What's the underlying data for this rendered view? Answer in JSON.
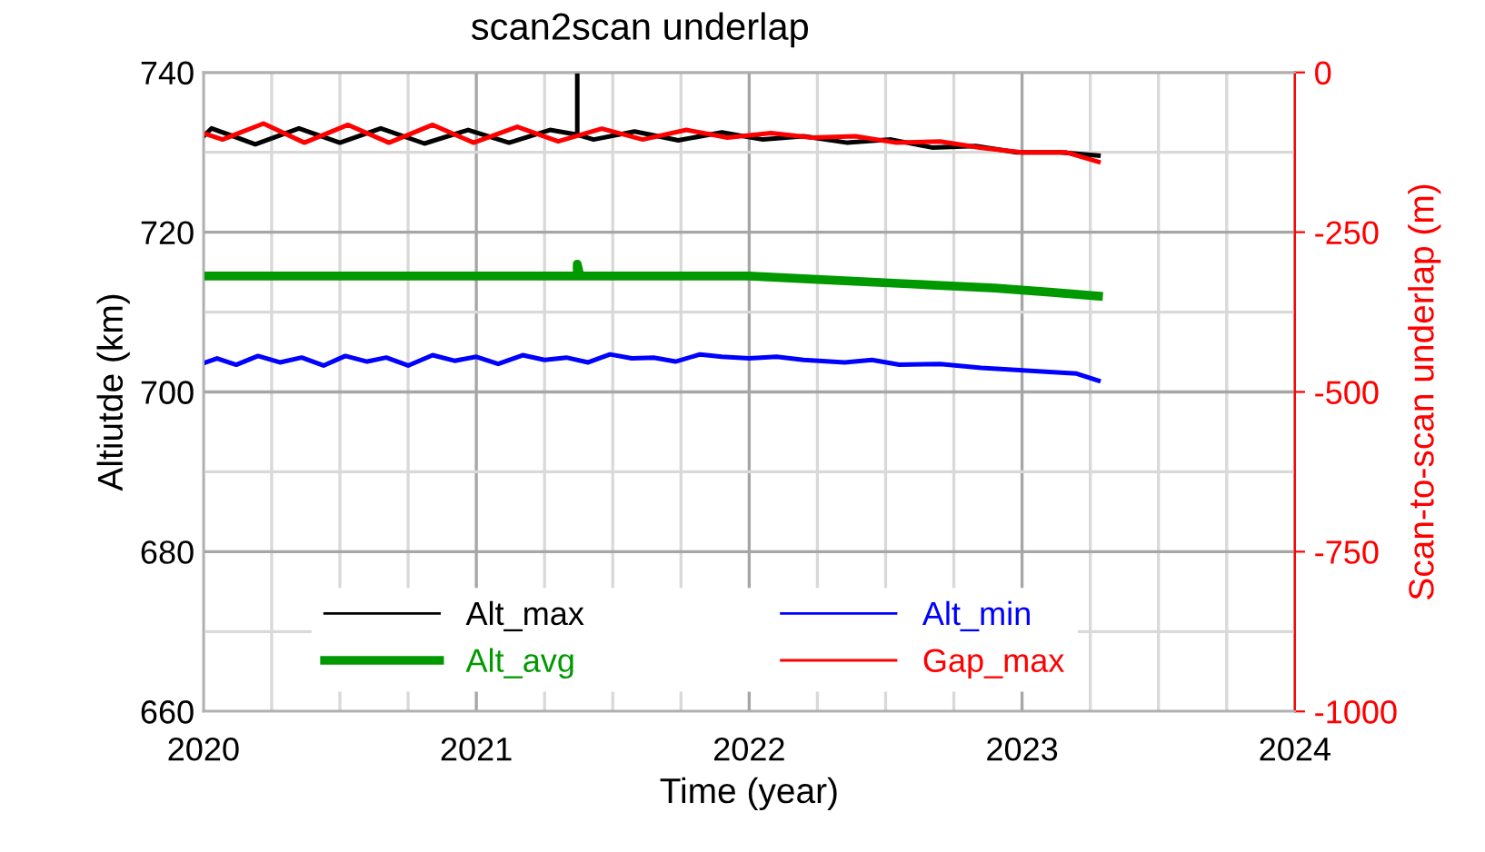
{
  "chart_data": {
    "type": "line",
    "title": "scan2scan underlap",
    "xlabel": "Time (year)",
    "ylabel": "Altiutde (km)",
    "y2label": "Scan-to-scan underlap (m)",
    "xlim": [
      2020,
      2024
    ],
    "xticks": [
      2020,
      2021,
      2022,
      2023,
      2024
    ],
    "ylim": [
      660,
      740
    ],
    "yticks": [
      660,
      680,
      700,
      720,
      740
    ],
    "y2lim": [
      -1000,
      0
    ],
    "y2ticks": [
      -1000,
      -750,
      -500,
      -250,
      0
    ],
    "grid": true,
    "legend": "bottom",
    "series": [
      {
        "name": "Alt_max",
        "color": "#000000",
        "x": [
          2020.0,
          2020.03,
          2020.19,
          2020.35,
          2020.5,
          2020.65,
          2020.81,
          2020.97,
          2021.12,
          2021.27,
          2021.37,
          2021.37,
          2021.37,
          2021.43,
          2021.58,
          2021.74,
          2021.9,
          2022.05,
          2022.2,
          2022.36,
          2022.52,
          2022.67,
          2022.83,
          2022.98,
          2023.14,
          2023.28
        ],
        "values": [
          732.0,
          733.0,
          731.0,
          733.0,
          731.2,
          733.0,
          731.1,
          732.8,
          731.2,
          732.8,
          732.2,
          740,
          732.2,
          731.6,
          732.6,
          731.5,
          732.5,
          731.6,
          732.0,
          731.2,
          731.6,
          730.6,
          730.8,
          730.0,
          730.0,
          729.6
        ]
      },
      {
        "name": "Alt_avg",
        "color": "#009900",
        "x": [
          2020.0,
          2021.37,
          2021.37,
          2021.38,
          2022.0,
          2022.3,
          2022.6,
          2022.9,
          2023.1,
          2023.28
        ],
        "values": [
          714.5,
          714.5,
          716,
          714.5,
          714.5,
          714.0,
          713.5,
          713.0,
          712.5,
          712.0
        ]
      },
      {
        "name": "Alt_min",
        "color": "#0000ff",
        "x": [
          2020.0,
          2020.05,
          2020.12,
          2020.2,
          2020.28,
          2020.36,
          2020.44,
          2020.52,
          2020.6,
          2020.67,
          2020.75,
          2020.84,
          2020.92,
          2021.0,
          2021.08,
          2021.17,
          2021.25,
          2021.33,
          2021.41,
          2021.49,
          2021.57,
          2021.65,
          2021.73,
          2021.82,
          2021.9,
          2022.0,
          2022.1,
          2022.2,
          2022.35,
          2022.45,
          2022.55,
          2022.7,
          2022.85,
          2022.95,
          2023.1,
          2023.2,
          2023.28
        ],
        "values": [
          703.6,
          704.2,
          703.4,
          704.5,
          703.7,
          704.3,
          703.3,
          704.5,
          703.8,
          704.3,
          703.3,
          704.6,
          703.9,
          704.4,
          703.5,
          704.6,
          704.0,
          704.3,
          703.7,
          704.7,
          704.2,
          704.3,
          703.8,
          704.7,
          704.4,
          704.2,
          704.4,
          704.0,
          703.7,
          704.0,
          703.4,
          703.5,
          703.0,
          702.8,
          702.5,
          702.3,
          701.4
        ]
      },
      {
        "name": "Gap_max",
        "color": "#ff0000",
        "axis": "y2",
        "x": [
          2020.0,
          2020.07,
          2020.22,
          2020.37,
          2020.53,
          2020.68,
          2020.84,
          2020.99,
          2021.15,
          2021.3,
          2021.46,
          2021.61,
          2021.77,
          2021.92,
          2022.08,
          2022.23,
          2022.39,
          2022.54,
          2022.7,
          2022.85,
          2023.0,
          2023.16,
          2023.28
        ],
        "values": [
          -95,
          -105,
          -80,
          -110,
          -82,
          -110,
          -82,
          -110,
          -85,
          -108,
          -88,
          -105,
          -90,
          -102,
          -95,
          -102,
          -100,
          -110,
          -108,
          -118,
          -125,
          -125,
          -140
        ]
      }
    ]
  }
}
